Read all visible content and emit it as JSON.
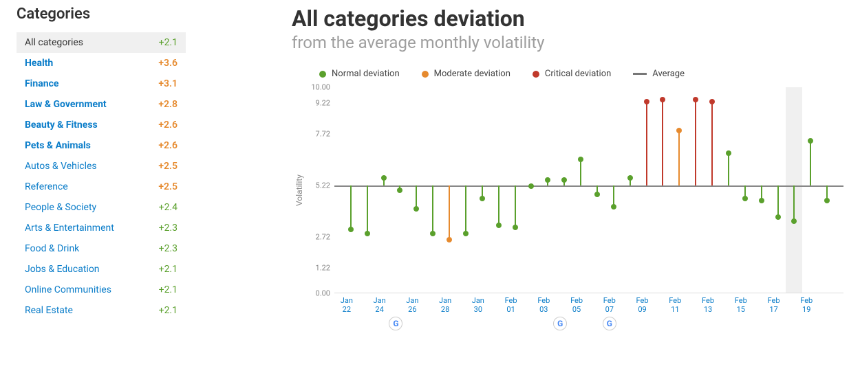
{
  "sidebar": {
    "title": "Categories",
    "items": [
      {
        "label": "All categories",
        "value": "+2.1",
        "selected": true,
        "bold": false,
        "valueColor": "green"
      },
      {
        "label": "Health",
        "value": "+3.6",
        "bold": true,
        "valueColor": "orange"
      },
      {
        "label": "Finance",
        "value": "+3.1",
        "bold": true,
        "valueColor": "orange"
      },
      {
        "label": "Law & Government",
        "value": "+2.8",
        "bold": true,
        "valueColor": "orange"
      },
      {
        "label": "Beauty & Fitness",
        "value": "+2.6",
        "bold": true,
        "valueColor": "orange"
      },
      {
        "label": "Pets & Animals",
        "value": "+2.6",
        "bold": true,
        "valueColor": "orange"
      },
      {
        "label": "Autos & Vehicles",
        "value": "+2.5",
        "bold": false,
        "valueColor": "orange"
      },
      {
        "label": "Reference",
        "value": "+2.5",
        "bold": false,
        "valueColor": "orange"
      },
      {
        "label": "People & Society",
        "value": "+2.4",
        "bold": false,
        "valueColor": "green"
      },
      {
        "label": "Arts & Entertainment",
        "value": "+2.3",
        "bold": false,
        "valueColor": "green"
      },
      {
        "label": "Food & Drink",
        "value": "+2.3",
        "bold": false,
        "valueColor": "green"
      },
      {
        "label": "Jobs & Education",
        "value": "+2.1",
        "bold": false,
        "valueColor": "green"
      },
      {
        "label": "Online Communities",
        "value": "+2.1",
        "bold": false,
        "valueColor": "green"
      },
      {
        "label": "Real Estate",
        "value": "+2.1",
        "bold": false,
        "valueColor": "green"
      }
    ]
  },
  "chart": {
    "title": "All categories deviation",
    "subtitle": "from the average monthly volatility",
    "legend": {
      "normal": "Normal deviation",
      "moderate": "Moderate deviation",
      "critical": "Critical deviation",
      "average": "Average"
    },
    "ylabel": "Volatility",
    "ymin": 0.0,
    "ymax": 10.0,
    "yticks": [
      0.0,
      1.22,
      2.72,
      5.22,
      7.72,
      9.22,
      10.0
    ],
    "average": 5.22,
    "colors": {
      "normal": "#5aa02c",
      "moderate": "#e68a2e",
      "critical": "#c0392b",
      "avgLine": "#888888",
      "grid": "#dddddd"
    },
    "xlabels": [
      "Jan 22",
      "Jan 24",
      "Jan 26",
      "Jan 28",
      "Jan 30",
      "Feb 01",
      "Feb 03",
      "Feb 05",
      "Feb 07",
      "Feb 09",
      "Feb 11",
      "Feb 13",
      "Feb 15",
      "Feb 17",
      "Feb 19"
    ],
    "highlightIndex": 27,
    "googleEventIndices": [
      3,
      13,
      16
    ],
    "points": [
      {
        "y": 3.1,
        "kind": "normal"
      },
      {
        "y": 2.9,
        "kind": "normal"
      },
      {
        "y": 5.6,
        "kind": "normal"
      },
      {
        "y": 5.0,
        "kind": "normal"
      },
      {
        "y": 4.1,
        "kind": "normal"
      },
      {
        "y": 2.9,
        "kind": "normal"
      },
      {
        "y": 2.6,
        "kind": "moderate"
      },
      {
        "y": 2.9,
        "kind": "normal"
      },
      {
        "y": 4.6,
        "kind": "normal"
      },
      {
        "y": 3.3,
        "kind": "normal"
      },
      {
        "y": 3.2,
        "kind": "normal"
      },
      {
        "y": 5.2,
        "kind": "normal"
      },
      {
        "y": 5.5,
        "kind": "normal"
      },
      {
        "y": 5.5,
        "kind": "normal"
      },
      {
        "y": 6.5,
        "kind": "normal"
      },
      {
        "y": 4.8,
        "kind": "normal"
      },
      {
        "y": 4.2,
        "kind": "normal"
      },
      {
        "y": 5.6,
        "kind": "normal"
      },
      {
        "y": 9.3,
        "kind": "critical"
      },
      {
        "y": 9.4,
        "kind": "critical"
      },
      {
        "y": 7.9,
        "kind": "moderate"
      },
      {
        "y": 9.4,
        "kind": "critical"
      },
      {
        "y": 9.3,
        "kind": "critical"
      },
      {
        "y": 6.8,
        "kind": "normal"
      },
      {
        "y": 4.6,
        "kind": "normal"
      },
      {
        "y": 4.5,
        "kind": "normal"
      },
      {
        "y": 3.7,
        "kind": "normal"
      },
      {
        "y": 3.5,
        "kind": "normal"
      },
      {
        "y": 7.4,
        "kind": "normal"
      },
      {
        "y": 4.5,
        "kind": "normal"
      }
    ]
  }
}
